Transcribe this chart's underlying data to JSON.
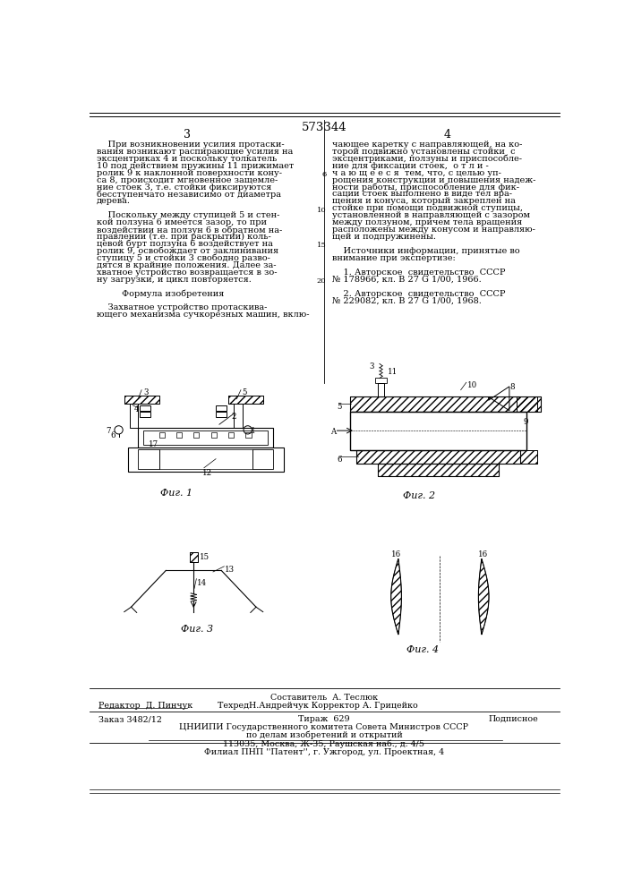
{
  "patent_number": "573344",
  "page_left": "3",
  "page_right": "4",
  "bg_color": "#ffffff",
  "font_size_body": 7.0,
  "font_size_small": 6.2,
  "left_column_text": [
    "    При возникновении усилия протаски-",
    "вания возникают распирающие усилия на",
    "эксцентриках 4 и поскольку толкатель",
    "10 под действием пружины 11 прижимает",
    "ролик 9 к наклонной поверхности кону-",
    "са 8, происходит мгновенное защемле-",
    "ние стоек 3, т.е. стойки фиксируются",
    "бесступенчато независимо от диаметра",
    "дерева.",
    "",
    "    Поскольку между ступицей 5 и стен-",
    "кой ползуна 6 имеется зазор, то при",
    "воздействии на ползун 6 в обратном на-",
    "правлении (т.е. при раскрытии) коль-",
    "цевой бурт ползуна 6 воздействует на",
    "ролик 9, освобождает от заклинивания",
    "ступицу 5 и стойки 3 свободно разво-",
    "дятся в крайние положения. Далее за-",
    "хватное устройство возвращается в зо-",
    "ну загрузки, и цикл повторяется.",
    "",
    "         Формула изобретения",
    "",
    "    Захватное устройство протаскива-",
    "ющего механизма сучкорезных машин, вклю-"
  ],
  "right_column_text": [
    "чающее каретку с направляющей, на ко-",
    "торой подвижно установлены стойки  с",
    "эксцентриками, ползуны и приспособле-",
    "ние для фиксации стоек,  о т л и -",
    "ч а ю щ е е с я  тем, что, с целью уп-",
    "рощения конструкции и повышения надеж-",
    "ности работы, приспособление для фик-",
    "сации стоек выполнено в виде тел вра-",
    "щения и конуса, который закреплен на",
    "стойке при помощи подвижной ступицы,",
    "установленной в направляющей с зазором",
    "между ползуном, причем тела вращения",
    "расположены между конусом и направляю-",
    "щей и подпружинены.",
    "",
    "    Источники информации, принятые во",
    "внимание при экспертизе:",
    "",
    "    1. Авторское  свидетельство  СССР",
    "№ 178966, кл. В 27 G 1/00, 1966.",
    "",
    "    2. Авторское  свидетельство  СССР",
    "№ 229082, кл. В 27 G 1/00, 1968."
  ],
  "fig1_label": "Фиг. 1",
  "fig2_label": "Фиг. 2",
  "fig3_label": "Фиг. 3",
  "fig4_label": "Фиг. 4",
  "footer": {
    "editor": "Редактор  Д. Пинчук",
    "compiler": "Составитель  А. Теслюк",
    "tech": "ТехредН.Андрейчук Корректор А. Грицейко",
    "order": "Заказ 3482/12",
    "circulation": "Тираж  629",
    "subscription": "Подписное",
    "org1": "ЦНИИПИ Государственного комитета Совета Министров СССР",
    "org2": "по делам изобретений и открытий",
    "address": "113035, Москва, Ж-35, Раушская наб., д. 4/5",
    "branch": "Филиал ПНП ''Патент'', г. Ужгород, ул. Проектная, 4"
  }
}
